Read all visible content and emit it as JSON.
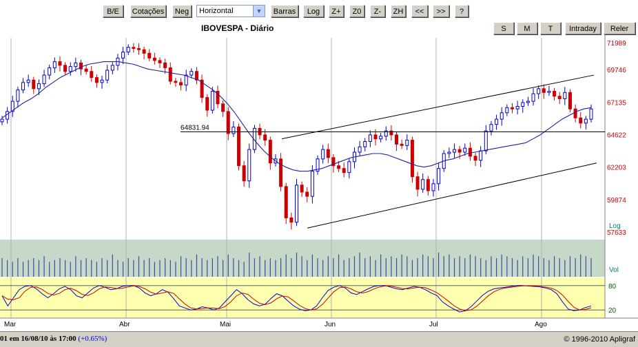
{
  "toolbar": {
    "buttons": [
      "B/E",
      "Cotações",
      "Neg",
      "Barras",
      "Log",
      "Z+",
      "Z0",
      "Z-",
      "ZH",
      "<<",
      ">>",
      "?"
    ],
    "orientation_value": "Horizontal",
    "period_buttons": [
      "S",
      "M",
      "T",
      "Intraday",
      "Reler"
    ]
  },
  "chart_data": {
    "type": "candlestick",
    "title": "IBOVESPA - Diário",
    "price_axis_labels": [
      "71989",
      "69746",
      "67135",
      "64622",
      "62203",
      "59874",
      "57633"
    ],
    "scale_label": "Log",
    "volume_label": "Vol",
    "oscillator_labels": [
      "80",
      "20"
    ],
    "month_labels": [
      "Mar",
      "Abr",
      "Mai",
      "Jun",
      "Jul",
      "Ago"
    ],
    "horizontal_line_value": 64831.94,
    "horizontal_line_label": "64831.94",
    "ylim": [
      57633,
      71989
    ],
    "series": [
      {
        "name": "IBOVESPA",
        "close": [
          65800,
          66400,
          67200,
          68100,
          68700,
          68900,
          68200,
          68600,
          69300,
          69900,
          70400,
          70100,
          69600,
          70000,
          70300,
          69800,
          69600,
          69100,
          68700,
          68900,
          69700,
          70100,
          70700,
          71200,
          71600,
          71500,
          71400,
          71100,
          70700,
          70500,
          70300,
          69900,
          68800,
          68700,
          68500,
          69300,
          69600,
          68900,
          67500,
          66500,
          68000,
          67000,
          66400,
          64700,
          65200,
          62300,
          61200,
          63500,
          65100,
          64600,
          64200,
          62500,
          62800,
          60800,
          58600,
          58300,
          60900,
          60400,
          60100,
          61900,
          62800,
          63500,
          62900,
          62300,
          62100,
          61800,
          62600,
          63300,
          63700,
          64100,
          64600,
          64300,
          64500,
          64900,
          64600,
          63900,
          63800,
          64200,
          61500,
          60600,
          61300,
          60500,
          61000,
          62100,
          63200,
          63300,
          63500,
          63300,
          63600,
          63000,
          62700,
          63400,
          64900,
          65400,
          65800,
          66300,
          66700,
          66600,
          66800,
          67100,
          67200,
          67800,
          68200,
          67900,
          68000,
          67600,
          67400,
          67900,
          66600,
          65900,
          65500,
          65800,
          66600
        ]
      },
      {
        "name": "MME",
        "values": [
          65900,
          66300,
          66700,
          67100,
          67400,
          67800,
          68300,
          68700,
          69100,
          69400,
          69700,
          70000,
          70200,
          70300,
          70400,
          70400,
          70400,
          70300,
          70200,
          70000,
          69800,
          69700,
          69600,
          69500,
          69400,
          69300,
          69100,
          68900,
          68500,
          68100,
          67600,
          67000,
          66300,
          65500,
          64700,
          64000,
          63400,
          62900,
          62500,
          62200,
          62000,
          61900,
          61900,
          62000,
          62100,
          62300,
          62500,
          62700,
          62900,
          63000,
          63100,
          63200,
          63200,
          63100,
          62900,
          62700,
          62500,
          62300,
          62200,
          62300,
          62500,
          62700,
          62800,
          63000,
          63200,
          63300,
          63400,
          63500,
          63600,
          63700,
          63800,
          63900,
          64000,
          64300,
          64600,
          65000,
          65400,
          65800,
          66100,
          66400,
          66600,
          66700
        ]
      },
      {
        "name": "Canal sup",
        "values": [
          64300,
          69300
        ]
      },
      {
        "name": "Canal inf",
        "values": [
          57900,
          62500
        ]
      }
    ],
    "volume": [
      10,
      9,
      8,
      10,
      8,
      9,
      10,
      9,
      11,
      8,
      9,
      10,
      9,
      8,
      11,
      9,
      10,
      9,
      8,
      10,
      9,
      12,
      9,
      8,
      10,
      9,
      11,
      9,
      10,
      8,
      9,
      10,
      9,
      8,
      11,
      10,
      9,
      12,
      10,
      9,
      10,
      11,
      9,
      12,
      10,
      9,
      8,
      13,
      10,
      11,
      9,
      10,
      9,
      10,
      12,
      10,
      13,
      11,
      9,
      12,
      10,
      9,
      11,
      10,
      12,
      9,
      10,
      11,
      13,
      10,
      11,
      9,
      12,
      10,
      11,
      10,
      12,
      11,
      9,
      10,
      12,
      11,
      10,
      13,
      11,
      12,
      10,
      11,
      10,
      12,
      11,
      10,
      9,
      11,
      10,
      12,
      11,
      10,
      9,
      11,
      10,
      12,
      11,
      10,
      9,
      11,
      10,
      9,
      11,
      10,
      12,
      11,
      10
    ],
    "stoch_k": [
      55,
      30,
      50,
      70,
      78,
      80,
      72,
      60,
      50,
      60,
      72,
      78,
      70,
      55,
      50,
      62,
      74,
      80,
      76,
      70,
      72,
      78,
      80,
      80,
      74,
      62,
      55,
      60,
      70,
      64,
      48,
      30,
      25,
      20,
      22,
      28,
      25,
      20,
      25,
      40,
      55,
      70,
      60,
      45,
      35,
      30,
      34,
      48,
      60,
      55,
      42,
      30,
      22,
      18,
      20,
      30,
      50,
      68,
      76,
      80,
      74,
      62,
      58,
      65,
      72,
      78,
      80,
      80,
      76,
      72,
      70,
      74,
      78,
      76,
      70,
      62,
      56,
      40,
      30,
      22,
      15,
      18,
      28,
      42,
      56,
      66,
      72,
      74,
      76,
      78,
      80,
      80,
      79,
      78,
      77,
      74,
      70,
      60,
      40,
      22,
      18,
      20,
      26,
      30
    ]
  },
  "status": {
    "left": "01 em 16/08/10 às 17:00",
    "change": "(+0.65%)",
    "copyright": "© 1996-2010 Apligraf"
  }
}
